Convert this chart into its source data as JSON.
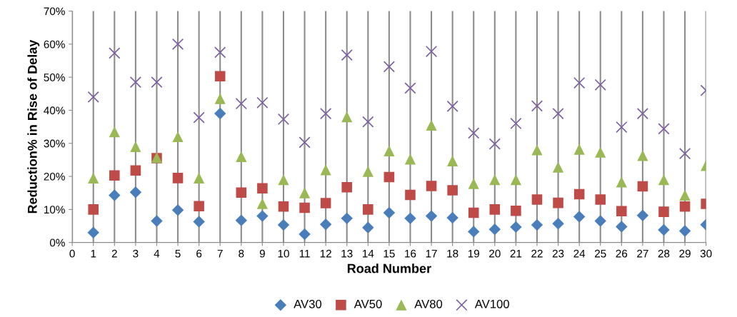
{
  "chart_data": {
    "type": "scatter",
    "xlabel": "Road Number",
    "ylabel": "Reduction% in Rise of Delay",
    "x": [
      1,
      2,
      3,
      4,
      5,
      6,
      7,
      8,
      9,
      10,
      11,
      12,
      13,
      14,
      15,
      16,
      17,
      18,
      19,
      20,
      21,
      22,
      23,
      24,
      25,
      26,
      27,
      28,
      29,
      30
    ],
    "series": [
      {
        "name": "AV30",
        "color": "#4a7ebb",
        "marker": "diamond",
        "values": [
          3,
          14.3,
          15.2,
          6.5,
          9.8,
          6.3,
          39,
          6.7,
          8,
          5.3,
          2.5,
          5.5,
          7.3,
          4.5,
          9,
          7.3,
          8,
          7.5,
          3.3,
          4,
          4.7,
          5.3,
          5.7,
          7.8,
          6.5,
          4.8,
          8.2,
          3.8,
          3.5,
          5.4
        ]
      },
      {
        "name": "AV50",
        "color": "#be4b48",
        "marker": "square",
        "values": [
          10,
          20.3,
          21.8,
          25.5,
          19.5,
          11,
          50.3,
          15.1,
          16.4,
          10.9,
          10.5,
          11.9,
          16.7,
          10,
          19.8,
          14.4,
          17.1,
          15.8,
          9,
          10,
          9.6,
          13,
          12,
          14.6,
          13,
          9.5,
          17,
          9.3,
          10.9,
          11.7
        ]
      },
      {
        "name": "AV80",
        "color": "#98b954",
        "marker": "triangle",
        "values": [
          19.5,
          33.5,
          29,
          25.7,
          32,
          19.5,
          43.5,
          26,
          11.8,
          19,
          15,
          22,
          38,
          21.5,
          27.7,
          25.2,
          35.5,
          24.7,
          17.8,
          19,
          19,
          28,
          22.8,
          28.2,
          27.3,
          18.3,
          26.3,
          19,
          14.3,
          23.3
        ]
      },
      {
        "name": "AV100",
        "color": "#7d60a0",
        "marker": "cross",
        "values": [
          44,
          57.3,
          48.5,
          48.5,
          60,
          37.8,
          57.5,
          42,
          42.3,
          37.3,
          30.3,
          39,
          56.7,
          36.5,
          53.2,
          46.7,
          57.8,
          41.2,
          33.1,
          29.8,
          36,
          41.3,
          39,
          48.3,
          47.7,
          34.9,
          39,
          34.4,
          26.9,
          46
        ]
      }
    ],
    "xlim": [
      0,
      30
    ],
    "xticks": [
      0,
      1,
      2,
      3,
      4,
      5,
      6,
      7,
      8,
      9,
      10,
      11,
      12,
      13,
      14,
      15,
      16,
      17,
      18,
      19,
      20,
      21,
      22,
      23,
      24,
      25,
      26,
      27,
      28,
      29,
      30
    ],
    "ylim": [
      0,
      70
    ],
    "yticks": [
      {
        "value": 0,
        "label": "0%"
      },
      {
        "value": 10,
        "label": "10%"
      },
      {
        "value": 20,
        "label": "20%"
      },
      {
        "value": 30,
        "label": "30%"
      },
      {
        "value": 40,
        "label": "40%"
      },
      {
        "value": 50,
        "label": "50%"
      },
      {
        "value": 60,
        "label": "60%"
      },
      {
        "value": 70,
        "label": "70%"
      }
    ],
    "grid": "x",
    "legend": "bottom"
  }
}
